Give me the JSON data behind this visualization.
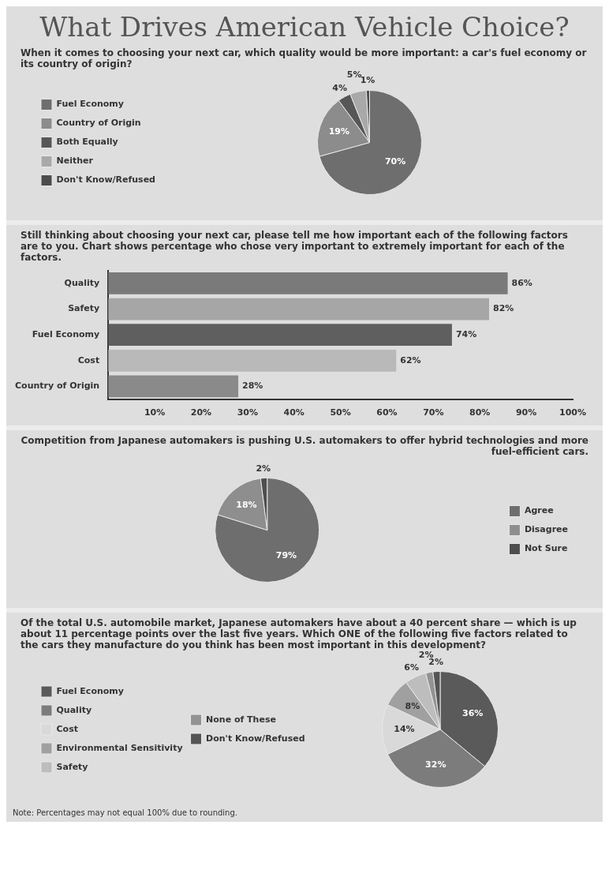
{
  "chart_data": [
    {
      "type": "pie",
      "title": "What Drives American Vehicle Choice?",
      "subtitle": "When it comes to choosing your next car, which quality would be more important: a car's fuel economy or its country of origin?",
      "categories": [
        "Fuel Economy",
        "Country of Origin",
        "Both Equally",
        "Neither",
        "Don't Know/Refused"
      ],
      "values": [
        70,
        19,
        4,
        5,
        1
      ],
      "colors": [
        "#6e6e6e",
        "#8c8c8c",
        "#575757",
        "#a9a9a9",
        "#4c4c4c"
      ],
      "value_labels": [
        "70%",
        "19%",
        "4%",
        "5%",
        "1%"
      ],
      "legend": "left"
    },
    {
      "type": "bar",
      "orientation": "horizontal",
      "title": "Still thinking about choosing your next car, please tell me how important each of the following factors are to you. Chart shows percentage who chose very important to extremely important for each of the factors.",
      "categories": [
        "Quality",
        "Safety",
        "Fuel Economy",
        "Cost",
        "Country of Origin"
      ],
      "values": [
        86,
        82,
        74,
        62,
        28
      ],
      "colors": [
        "#7a7a7a",
        "#a6a6a6",
        "#5f5f5f",
        "#b9b9b9",
        "#8a8a8a"
      ],
      "value_labels": [
        "86%",
        "82%",
        "74%",
        "62%",
        "28%"
      ],
      "xlim": [
        0,
        100
      ],
      "xticks": [
        {
          "value": 10,
          "label": "10%"
        },
        {
          "value": 20,
          "label": "20%"
        },
        {
          "value": 30,
          "label": "30%"
        },
        {
          "value": 40,
          "label": "40%"
        },
        {
          "value": 50,
          "label": "50%"
        },
        {
          "value": 60,
          "label": "60%"
        },
        {
          "value": 70,
          "label": "70%"
        },
        {
          "value": 80,
          "label": "80%"
        },
        {
          "value": 90,
          "label": "90%"
        },
        {
          "value": 100,
          "label": "100%"
        }
      ]
    },
    {
      "type": "pie",
      "title": "Competition from Japanese automakers is pushing U.S. automakers to offer hybrid technologies and more fuel-efficient cars.",
      "categories": [
        "Agree",
        "Disagree",
        "Not Sure"
      ],
      "values": [
        79,
        18,
        2
      ],
      "colors": [
        "#6e6e6e",
        "#8e8e8e",
        "#4e4e4e"
      ],
      "value_labels": [
        "79%",
        "18%",
        "2%"
      ],
      "legend": "right"
    },
    {
      "type": "pie",
      "title": "Of the total U.S. automobile market, Japanese automakers have about a 40 percent share — which is up about 11 percentage points over the last five years. Which ONE of the following five factors related to the cars they manufacture do you think has been most important in this development?",
      "categories": [
        "Fuel Economy",
        "Quality",
        "Cost",
        "Environmental Sensitivity",
        "Safety",
        "None of These",
        "Don't Know/Refused"
      ],
      "values": [
        36,
        32,
        14,
        8,
        6,
        2,
        2
      ],
      "colors": [
        "#5a5a5a",
        "#7c7c7c",
        "#d9d9d9",
        "#a0a0a0",
        "#bdbdbd",
        "#939393",
        "#545454"
      ],
      "value_labels": [
        "36%",
        "32%",
        "14%",
        "8%",
        "6%",
        "2%",
        "2%"
      ],
      "legend": "left",
      "annotations": [
        "Note: Percentages may not equal 100% due to rounding."
      ]
    }
  ]
}
